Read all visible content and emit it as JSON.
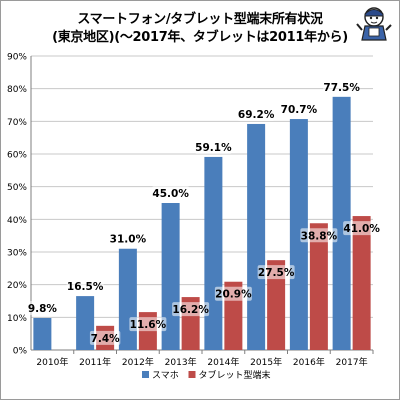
{
  "chart_data": {
    "type": "bar",
    "title": "スマートフォン/タブレット型端末所有状況",
    "subtitle": "(東京地区)(～2017年、タブレットは2011年から)",
    "categories": [
      "2010年",
      "2011年",
      "2012年",
      "2013年",
      "2014年",
      "2015年",
      "2016年",
      "2017年"
    ],
    "series": [
      {
        "name": "スマホ",
        "color": "#4a7ebb",
        "values": [
          9.8,
          16.5,
          31.0,
          45.0,
          59.1,
          69.2,
          70.7,
          77.5
        ],
        "labels": [
          "9.8%",
          "16.5%",
          "31.0%",
          "45.0%",
          "59.1%",
          "69.2%",
          "70.7%",
          "77.5%"
        ]
      },
      {
        "name": "タブレット型端末",
        "color": "#be4b48",
        "values": [
          null,
          7.4,
          11.6,
          16.2,
          20.9,
          27.5,
          38.8,
          41.0
        ],
        "labels": [
          "",
          "7.4%",
          "11.6%",
          "16.2%",
          "20.9%",
          "27.5%",
          "38.8%",
          "41.0%"
        ]
      }
    ],
    "yticks": [
      "0%",
      "10%",
      "20%",
      "30%",
      "40%",
      "50%",
      "60%",
      "70%",
      "80%",
      "90%"
    ],
    "ylim": [
      0,
      90
    ],
    "grid": true,
    "legend": "bottom"
  },
  "mascot_icon": "mascot-character-icon"
}
